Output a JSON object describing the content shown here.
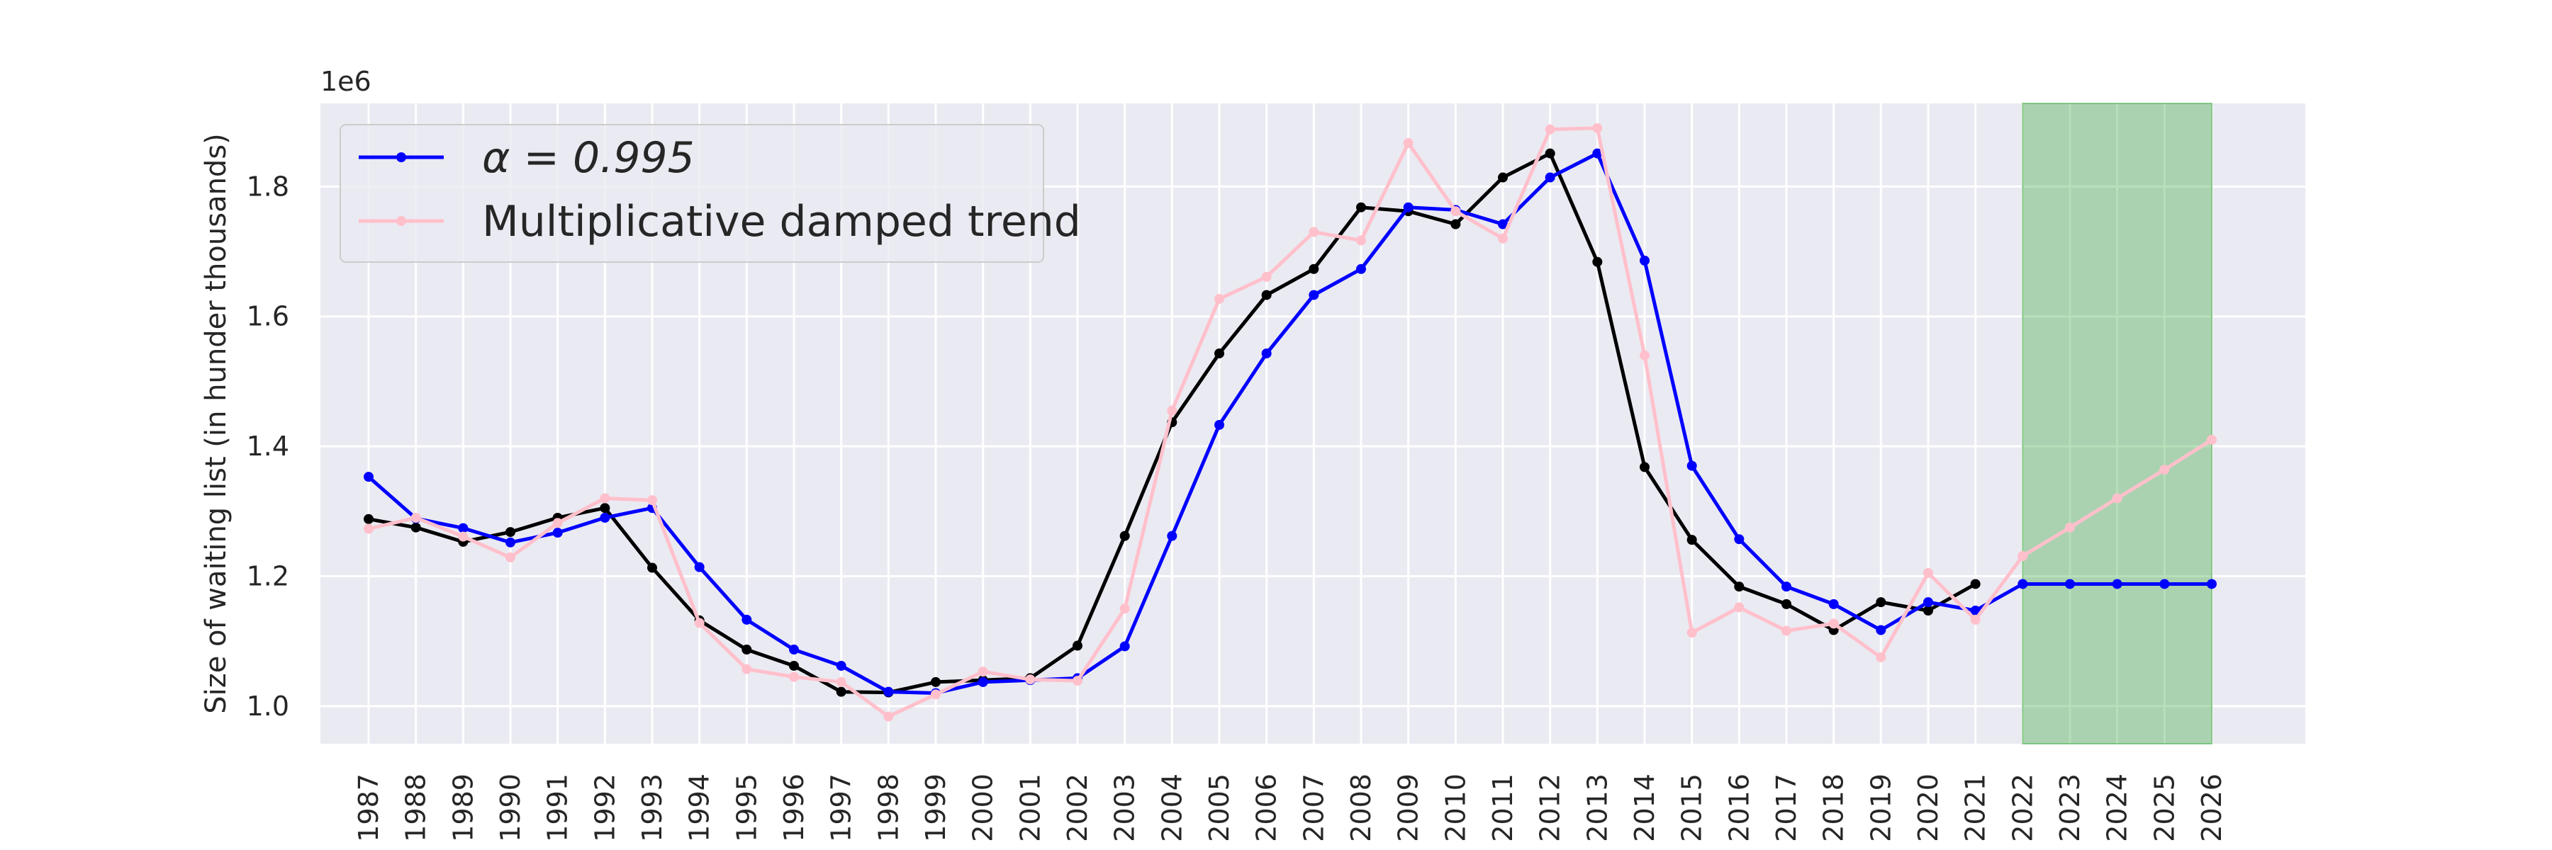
{
  "chart_data": {
    "type": "line",
    "ylabel": "Size of waiting list (in hunder thousands)",
    "xlabel": "",
    "y_offset_label": "1e6",
    "ylim": [
      942000,
      1928000
    ],
    "y_ticks": [
      1.0,
      1.2,
      1.4,
      1.6,
      1.8
    ],
    "x": [
      1987,
      1988,
      1989,
      1990,
      1991,
      1992,
      1993,
      1994,
      1995,
      1996,
      1997,
      1998,
      1999,
      2000,
      2001,
      2002,
      2003,
      2004,
      2005,
      2006,
      2007,
      2008,
      2009,
      2010,
      2011,
      2012,
      2013,
      2014,
      2015,
      2016,
      2017,
      2018,
      2019,
      2020,
      2021,
      2022,
      2023,
      2024,
      2025,
      2026
    ],
    "xlim": [
      1985.98,
      2027.98
    ],
    "forecast_span": [
      2022,
      2026
    ],
    "grid": true,
    "legend_position": "top-left",
    "series": [
      {
        "name": "",
        "color": "#000000",
        "x": [
          1987,
          1988,
          1989,
          1990,
          1991,
          1992,
          1993,
          1994,
          1995,
          1996,
          1997,
          1998,
          1999,
          2000,
          2001,
          2002,
          2003,
          2004,
          2005,
          2006,
          2007,
          2008,
          2009,
          2010,
          2011,
          2012,
          2013,
          2014,
          2015,
          2016,
          2017,
          2018,
          2019,
          2020,
          2021
        ],
        "values": [
          1288000,
          1275000,
          1253000,
          1268000,
          1290000,
          1305000,
          1213000,
          1132000,
          1087000,
          1062000,
          1022000,
          1021000,
          1037000,
          1040000,
          1043000,
          1093000,
          1262000,
          1437000,
          1543000,
          1633000,
          1673000,
          1768000,
          1762000,
          1742000,
          1814000,
          1851000,
          1684000,
          1368000,
          1256000,
          1184000,
          1157000,
          1117000,
          1160000,
          1147000,
          1188000
        ]
      },
      {
        "name": "α = 0.995",
        "color": "#0000ff",
        "x": [
          1987,
          1988,
          1989,
          1990,
          1991,
          1992,
          1993,
          1994,
          1995,
          1996,
          1997,
          1998,
          1999,
          2000,
          2001,
          2002,
          2003,
          2004,
          2005,
          2006,
          2007,
          2008,
          2009,
          2010,
          2011,
          2012,
          2013,
          2014,
          2015,
          2016,
          2017,
          2018,
          2019,
          2020,
          2021,
          2022,
          2023,
          2024,
          2025,
          2026
        ],
        "values": [
          1353000,
          1289000,
          1274000,
          1252000,
          1267000,
          1290000,
          1305000,
          1214000,
          1133000,
          1087000,
          1062000,
          1022000,
          1020000,
          1037000,
          1040000,
          1043000,
          1092000,
          1262000,
          1433000,
          1543000,
          1633000,
          1673000,
          1768000,
          1764000,
          1742000,
          1814000,
          1851000,
          1686000,
          1370000,
          1257000,
          1184000,
          1157000,
          1117000,
          1160000,
          1147000,
          1188000,
          1188000,
          1188000,
          1188000,
          1188000
        ]
      },
      {
        "name": "Multiplicative damped trend",
        "color": "#ffc0cb",
        "x": [
          1987,
          1988,
          1989,
          1990,
          1991,
          1992,
          1993,
          1994,
          1995,
          1996,
          1997,
          1998,
          1999,
          2000,
          2001,
          2002,
          2003,
          2004,
          2005,
          2006,
          2007,
          2008,
          2009,
          2010,
          2011,
          2012,
          2013,
          2014,
          2015,
          2016,
          2017,
          2018,
          2019,
          2020,
          2021,
          2022,
          2023,
          2024,
          2025,
          2026
        ],
        "values": [
          1273000,
          1290000,
          1261000,
          1229000,
          1282000,
          1320000,
          1317000,
          1128000,
          1057000,
          1045000,
          1037000,
          984000,
          1018000,
          1053000,
          1041000,
          1039000,
          1150000,
          1455000,
          1627000,
          1661000,
          1730000,
          1717000,
          1867000,
          1762000,
          1720000,
          1888000,
          1890000,
          1540000,
          1113000,
          1152000,
          1116000,
          1127000,
          1075000,
          1205000,
          1133000,
          1231000,
          1275000,
          1320000,
          1364000,
          1410000
        ]
      }
    ]
  }
}
